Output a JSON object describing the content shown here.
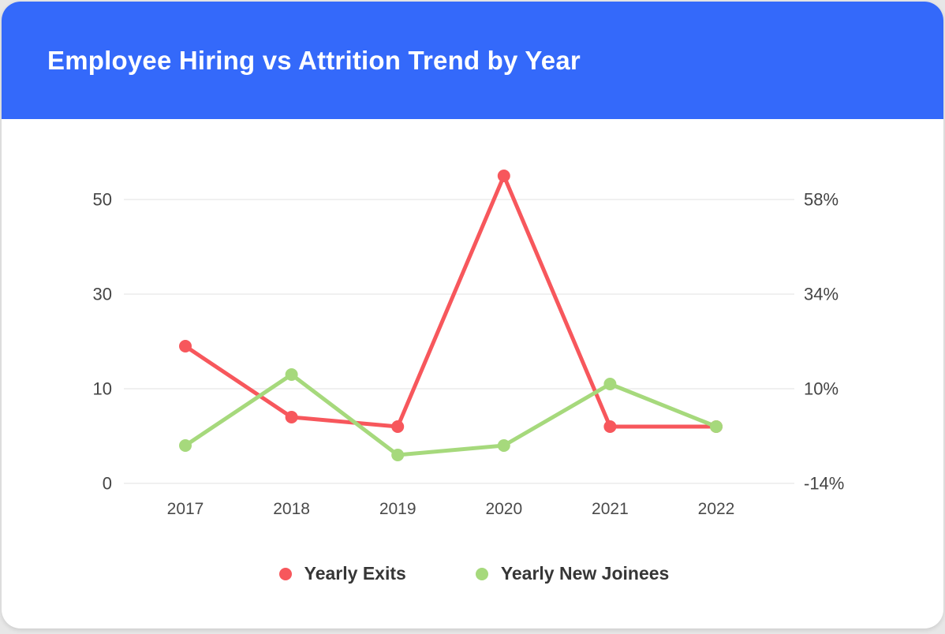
{
  "header": {
    "title": "Employee Hiring vs Attrition Trend by Year",
    "background_color": "#3469FA"
  },
  "chart_data": {
    "type": "line",
    "title": "Employee Hiring vs Attrition Trend by Year",
    "categories": [
      "2017",
      "2018",
      "2019",
      "2020",
      "2021",
      "2022"
    ],
    "series": [
      {
        "name": "Yearly Exits",
        "color": "#F7575C",
        "values": [
          19,
          7,
          6,
          55,
          6,
          6
        ]
      },
      {
        "name": "Yearly New Joinees",
        "color": "#A6D97C",
        "values": [
          4,
          13,
          3,
          4,
          11,
          6
        ]
      }
    ],
    "y_axis_left": {
      "tick_labels": [
        "0",
        "10",
        "30",
        "50"
      ],
      "tick_values": [
        0,
        10,
        30,
        50
      ]
    },
    "y_axis_right": {
      "tick_labels": [
        "-14%",
        "10%",
        "34%",
        "58%"
      ]
    },
    "grid": true,
    "legend_position": "bottom",
    "grid_color": "#F0F0F0",
    "axis_label_color": "#454545"
  },
  "legend": {
    "items": [
      {
        "label": "Yearly Exits",
        "color": "#F7575C"
      },
      {
        "label": "Yearly New Joinees",
        "color": "#A6D97C"
      }
    ]
  }
}
